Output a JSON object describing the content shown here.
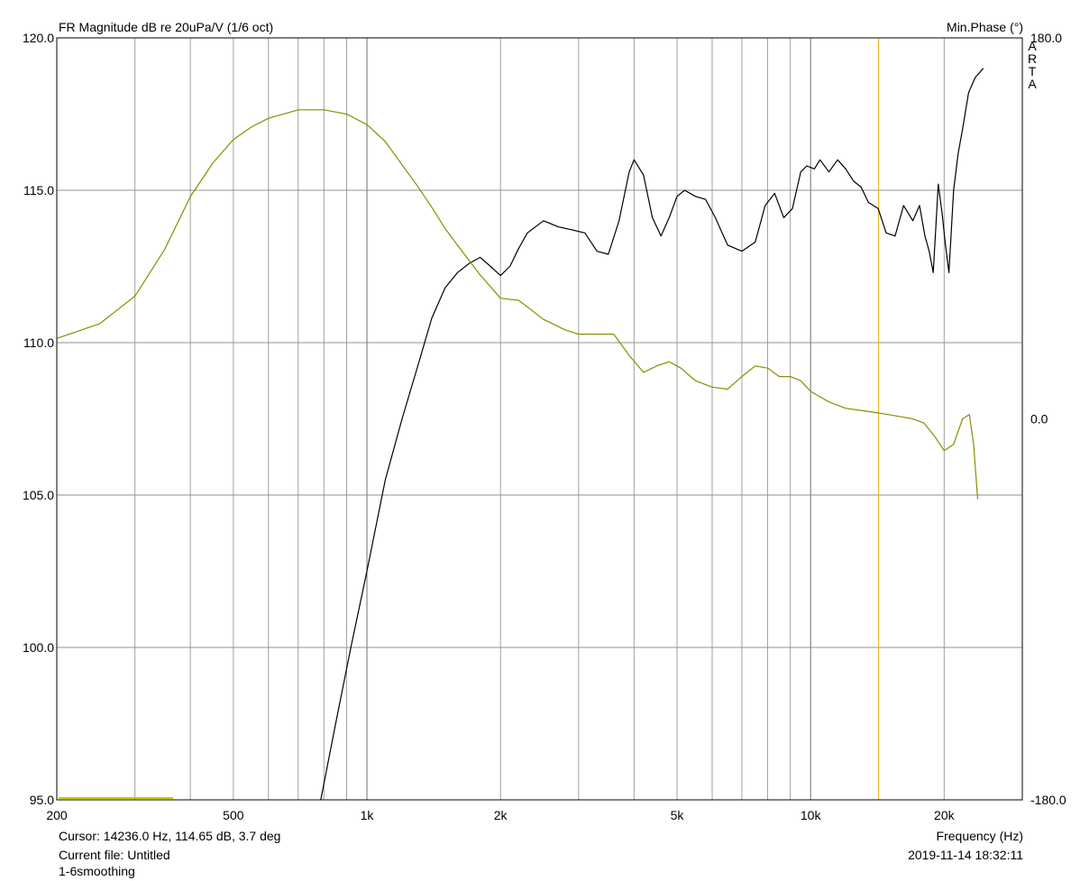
{
  "header": {
    "left_title": "FR Magnitude dB re 20uPa/V (1/6 oct)",
    "right_title": "Min.Phase (°)",
    "brand_letters": [
      "A",
      "R",
      "T",
      "A"
    ]
  },
  "footer": {
    "cursor": "Cursor: 14236.0 Hz, 114.65 dB, 3.7 deg",
    "current_file": "Current file: Untitled",
    "smoothing": "1-6smoothing",
    "x_axis_label": "Frequency (Hz)",
    "timestamp": "2019-11-14  18:32:11"
  },
  "colors": {
    "magnitude": "#000000",
    "phase": "#8c8c00",
    "cursor": "#e0b000",
    "grid": "#a0a0a0",
    "legend_marker": "#c8c800"
  },
  "chart_data": {
    "type": "line",
    "x_scale": "log",
    "xlim": [
      200,
      30000
    ],
    "ylim": [
      95,
      120
    ],
    "y2lim": [
      -180,
      180
    ],
    "grid": true,
    "x_ticks": [
      {
        "value": 200,
        "label": "200"
      },
      {
        "value": 500,
        "label": "500"
      },
      {
        "value": 1000,
        "label": "1k"
      },
      {
        "value": 2000,
        "label": "2k"
      },
      {
        "value": 5000,
        "label": "5k"
      },
      {
        "value": 10000,
        "label": "10k"
      },
      {
        "value": 20000,
        "label": "20k"
      }
    ],
    "y_ticks": [
      {
        "value": 95,
        "label": "95.0"
      },
      {
        "value": 100,
        "label": "100.0"
      },
      {
        "value": 105,
        "label": "105.0"
      },
      {
        "value": 110,
        "label": "110.0"
      },
      {
        "value": 115,
        "label": "115.0"
      },
      {
        "value": 120,
        "label": "120.0"
      }
    ],
    "y2_ticks": [
      {
        "value": -180,
        "label": "-180.0"
      },
      {
        "value": 0,
        "label": "0.0"
      },
      {
        "value": 180,
        "label": "180.0"
      }
    ],
    "cursor_x": 14236,
    "series": [
      {
        "key": "magnitude",
        "axis": "left",
        "x": [
          787,
          850,
          920,
          1000,
          1100,
          1200,
          1300,
          1400,
          1500,
          1600,
          1700,
          1800,
          1900,
          2000,
          2100,
          2200,
          2300,
          2500,
          2700,
          2900,
          3100,
          3300,
          3500,
          3700,
          3900,
          4000,
          4200,
          4400,
          4600,
          4800,
          5000,
          5200,
          5500,
          5800,
          6100,
          6500,
          7000,
          7500,
          7900,
          8300,
          8700,
          9100,
          9500,
          9800,
          10200,
          10500,
          11000,
          11500,
          12000,
          12500,
          13000,
          13500,
          14200,
          14800,
          15500,
          16200,
          17000,
          17600,
          18100,
          18500,
          18900,
          19400,
          19800,
          20100,
          20500,
          21000,
          21500,
          22000,
          22700,
          23500,
          24500
        ],
        "y": [
          95.0,
          97.5,
          100.0,
          102.5,
          105.5,
          107.5,
          109.2,
          110.8,
          111.8,
          112.3,
          112.6,
          112.8,
          112.5,
          112.2,
          112.5,
          113.1,
          113.6,
          114.0,
          113.8,
          113.7,
          113.6,
          113.0,
          112.9,
          114.0,
          115.6,
          116.0,
          115.5,
          114.1,
          113.5,
          114.1,
          114.8,
          115.0,
          114.8,
          114.7,
          114.1,
          113.2,
          113.0,
          113.3,
          114.5,
          114.9,
          114.1,
          114.4,
          115.6,
          115.8,
          115.7,
          116.0,
          115.6,
          116.0,
          115.7,
          115.3,
          115.1,
          114.6,
          114.4,
          113.6,
          113.5,
          114.5,
          114.0,
          114.5,
          113.5,
          113.0,
          112.3,
          115.2,
          114.2,
          113.3,
          112.3,
          115.0,
          116.2,
          117.0,
          118.2,
          118.7,
          119.0
        ]
      },
      {
        "key": "phase",
        "axis": "right",
        "x": [
          200,
          250,
          300,
          350,
          400,
          450,
          500,
          550,
          600,
          700,
          800,
          900,
          1000,
          1100,
          1200,
          1300,
          1400,
          1500,
          1600,
          1800,
          2000,
          2200,
          2500,
          2800,
          3000,
          3300,
          3600,
          3900,
          4200,
          4500,
          4800,
          5100,
          5500,
          6000,
          6500,
          7000,
          7500,
          8000,
          8500,
          9000,
          9500,
          10000,
          11000,
          12000,
          13000,
          14000,
          15000,
          16000,
          17000,
          18000,
          19000,
          20000,
          21000,
          22000,
          22800,
          23300,
          23800
        ],
        "y": [
          38,
          45,
          58,
          80,
          105,
          121,
          132,
          138,
          142,
          146,
          146,
          144,
          139,
          131,
          120,
          110,
          100,
          90,
          82,
          68,
          57,
          56,
          47,
          42,
          40,
          40,
          40,
          30,
          22,
          25,
          27,
          24,
          18,
          15,
          14,
          20,
          25,
          24,
          20,
          20,
          18,
          13,
          8,
          5,
          4,
          3,
          2,
          1,
          0,
          -2,
          -8,
          -15,
          -12,
          0,
          2,
          -12,
          -38
        ]
      }
    ]
  }
}
